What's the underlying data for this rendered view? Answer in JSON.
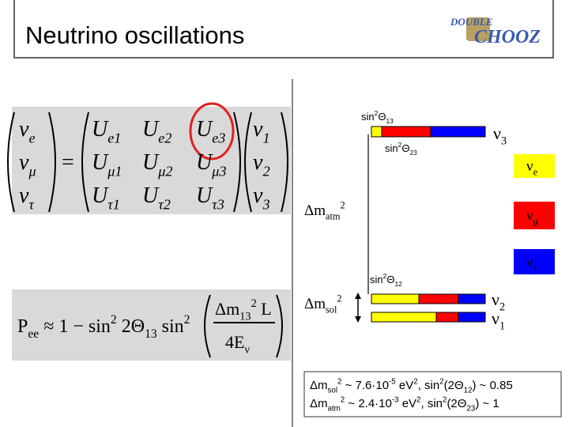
{
  "title": "Neutrino oscillations",
  "logo": {
    "top": "DOUBLE",
    "bottom": "CHOOZ"
  },
  "matrix": {
    "left": [
      [
        {
          "text": "ν"
        },
        {
          "text": "e",
          "pos": "sub"
        }
      ],
      [
        {
          "text": "ν"
        },
        {
          "text": "μ",
          "pos": "sub"
        }
      ],
      [
        {
          "text": "ν"
        },
        {
          "text": "τ",
          "pos": "sub"
        }
      ]
    ],
    "equals": "=",
    "entries": [
      [
        [
          {
            "text": "U"
          },
          {
            "text": "e1",
            "pos": "sub"
          }
        ],
        [
          {
            "text": "U"
          },
          {
            "text": "e2",
            "pos": "sub"
          }
        ],
        [
          {
            "text": "U"
          },
          {
            "text": "e3",
            "pos": "sub"
          }
        ]
      ],
      [
        [
          {
            "text": "U"
          },
          {
            "text": "μ1",
            "pos": "sub"
          }
        ],
        [
          {
            "text": "U"
          },
          {
            "text": "μ2",
            "pos": "sub"
          }
        ],
        [
          {
            "text": "U"
          },
          {
            "text": "μ3",
            "pos": "sub"
          }
        ]
      ],
      [
        [
          {
            "text": "U"
          },
          {
            "text": "τ1",
            "pos": "sub"
          }
        ],
        [
          {
            "text": "U"
          },
          {
            "text": "τ2",
            "pos": "sub"
          }
        ],
        [
          {
            "text": "U"
          },
          {
            "text": "τ3",
            "pos": "sub"
          }
        ]
      ]
    ],
    "right": [
      [
        {
          "text": "ν"
        },
        {
          "text": "1",
          "pos": "sub"
        }
      ],
      [
        {
          "text": "ν"
        },
        {
          "text": "2",
          "pos": "sub"
        }
      ],
      [
        {
          "text": "ν"
        },
        {
          "text": "3",
          "pos": "sub"
        }
      ]
    ]
  },
  "formula": {
    "lhs": [
      {
        "text": "P"
      },
      {
        "text": "ee",
        "pos": "sub"
      },
      {
        "text": " ≈ 1 − sin"
      },
      {
        "text": "2",
        "pos": "sup"
      },
      {
        "text": " 2Θ"
      },
      {
        "text": "13",
        "pos": "sub"
      },
      {
        "text": " sin"
      },
      {
        "text": "2",
        "pos": "sup"
      }
    ],
    "numerator": [
      {
        "text": "Δm"
      },
      {
        "text": "13",
        "pos": "sub"
      },
      {
        "text": "2",
        "pos": "sup"
      },
      {
        "text": " L"
      }
    ],
    "denominator": [
      {
        "text": "4E"
      },
      {
        "text": "ν",
        "pos": "sub"
      }
    ]
  },
  "diagram": {
    "sin13": [
      {
        "text": "sin"
      },
      {
        "text": "2",
        "pos": "sup"
      },
      {
        "text": "Θ"
      },
      {
        "text": "13",
        "pos": "sub"
      }
    ],
    "sin23": [
      {
        "text": "sin"
      },
      {
        "text": "2",
        "pos": "sup"
      },
      {
        "text": "Θ"
      },
      {
        "text": "23",
        "pos": "sub"
      }
    ],
    "sin12": [
      {
        "text": "sin"
      },
      {
        "text": "2",
        "pos": "sup"
      },
      {
        "text": "Θ"
      },
      {
        "text": "12",
        "pos": "sub"
      }
    ],
    "dm_atm": [
      {
        "text": "Δm"
      },
      {
        "text": "atm",
        "pos": "sub"
      },
      {
        "text": "2",
        "pos": "sup"
      }
    ],
    "dm_sol": [
      {
        "text": "Δm"
      },
      {
        "text": "sol",
        "pos": "sub"
      },
      {
        "text": "2",
        "pos": "sup"
      }
    ],
    "nu3": [
      {
        "text": "ν"
      },
      {
        "text": "3",
        "pos": "sub"
      }
    ],
    "nu2": [
      {
        "text": "ν"
      },
      {
        "text": "2",
        "pos": "sub"
      }
    ],
    "nu1": [
      {
        "text": "ν"
      },
      {
        "text": "1",
        "pos": "sub"
      }
    ],
    "legend": [
      {
        "label": [
          {
            "text": "ν"
          },
          {
            "text": "e",
            "pos": "sub"
          }
        ],
        "color": "#ffff00"
      },
      {
        "label": [
          {
            "text": "ν"
          },
          {
            "text": "μ",
            "pos": "sub"
          }
        ],
        "color": "#ff0000"
      },
      {
        "label": [
          {
            "text": "ν"
          },
          {
            "text": "τ",
            "pos": "sub"
          }
        ],
        "color": "#0000ff"
      }
    ]
  },
  "summary": [
    [
      {
        "text": "Δm"
      },
      {
        "text": "sol",
        "pos": "sub"
      },
      {
        "text": "2",
        "pos": "sup"
      },
      {
        "text": " ~ 7.6·10"
      },
      {
        "text": "-5",
        "pos": "sup"
      },
      {
        "text": " eV"
      },
      {
        "text": "2",
        "pos": "sup"
      },
      {
        "text": ", sin"
      },
      {
        "text": "2",
        "pos": "sup"
      },
      {
        "text": "(2Θ"
      },
      {
        "text": "12",
        "pos": "sub"
      },
      {
        "text": ") ~ 0.85"
      }
    ],
    [
      {
        "text": "Δm"
      },
      {
        "text": "atm",
        "pos": "sub"
      },
      {
        "text": "2",
        "pos": "sup"
      },
      {
        "text": " ~ 2.4·10"
      },
      {
        "text": "-3",
        "pos": "sup"
      },
      {
        "text": " eV"
      },
      {
        "text": "2",
        "pos": "sup"
      },
      {
        "text": ", sin"
      },
      {
        "text": "2",
        "pos": "sup"
      },
      {
        "text": "(2Θ"
      },
      {
        "text": "23",
        "pos": "sub"
      },
      {
        "text": ") ~ 1"
      }
    ]
  ]
}
